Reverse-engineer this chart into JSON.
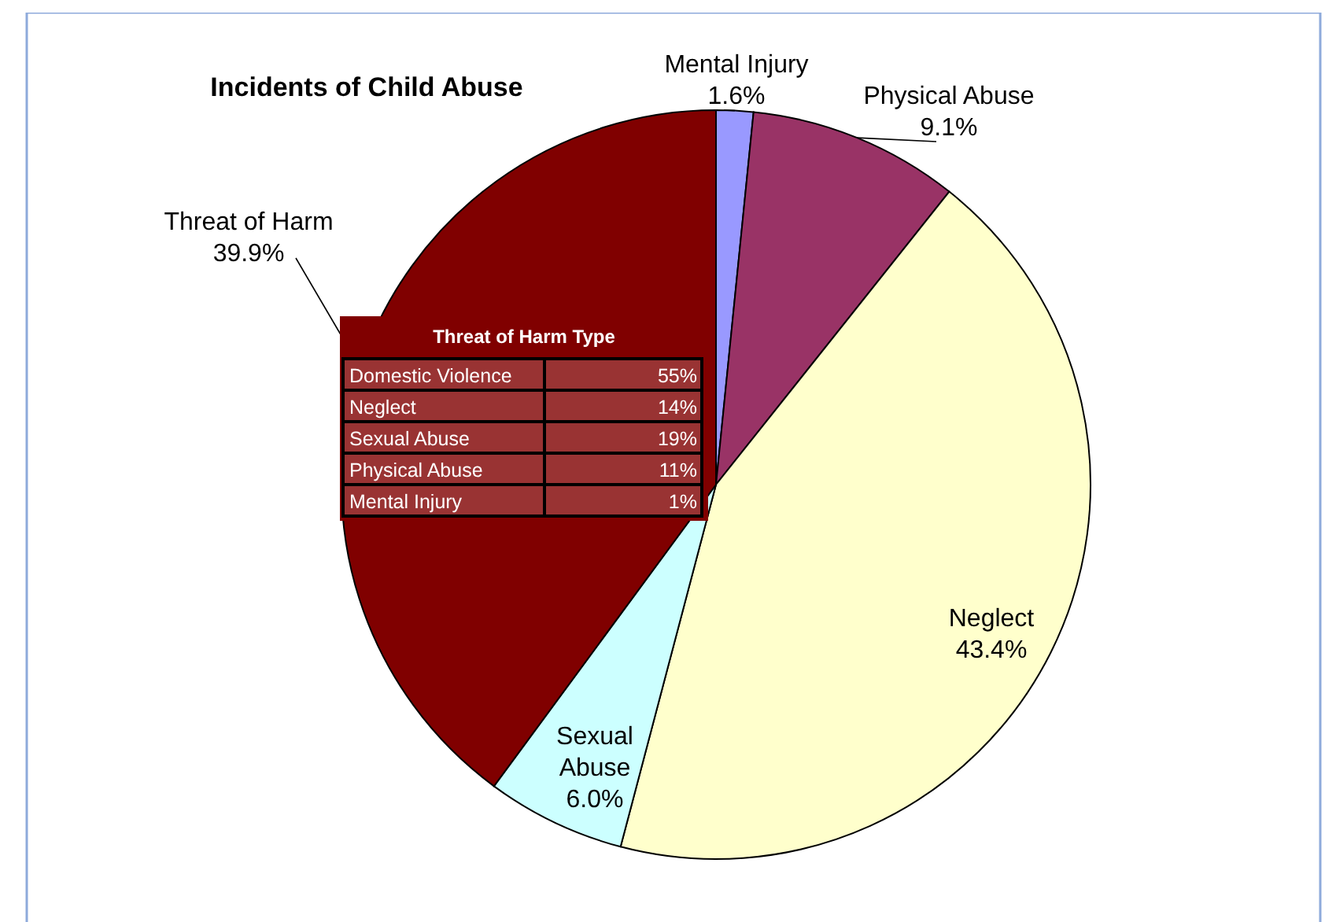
{
  "chart_data": [
    {
      "type": "pie",
      "title": "Incidents of Child Abuse",
      "categories": [
        "Mental Injury",
        "Physical Abuse",
        "Neglect",
        "Sexual Abuse",
        "Threat of Harm"
      ],
      "values": [
        1.6,
        9.1,
        43.4,
        6.0,
        39.9
      ],
      "colors": [
        "#9999ff",
        "#993366",
        "#ffffcc",
        "#ccffff",
        "#800000"
      ],
      "value_labels": [
        "1.6%",
        "9.1%",
        "43.4%",
        "6.0%",
        "39.9%"
      ]
    },
    {
      "type": "other",
      "title": "Threat of Harm Type",
      "categories": [
        "Domestic Violence",
        "Neglect",
        "Sexual Abuse",
        "Physical Abuse",
        "Mental Injury"
      ],
      "value_labels": [
        "55%",
        "14%",
        "19%",
        "11%",
        "1%"
      ],
      "color": "#993333"
    }
  ]
}
